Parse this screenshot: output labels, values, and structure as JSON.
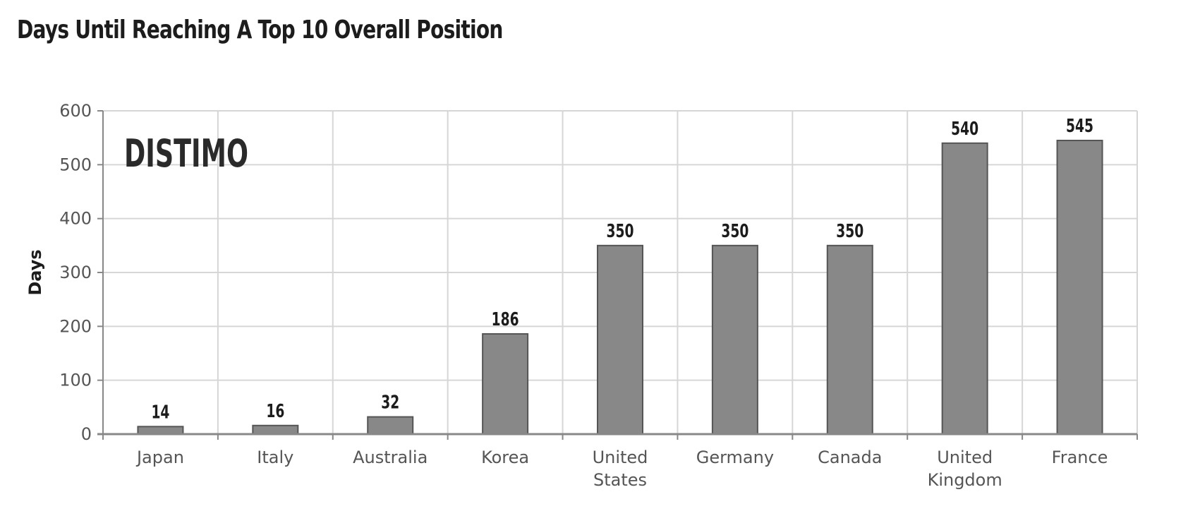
{
  "chart_data": {
    "type": "bar",
    "title": "Days Until Reaching A Top 10 Overall Position",
    "xlabel": "",
    "ylabel": "Days",
    "ylim": [
      0,
      600
    ],
    "yticks": [
      "0",
      "100",
      "200",
      "300",
      "400",
      "500",
      "600"
    ],
    "categories": [
      [
        "Japan"
      ],
      [
        "Italy"
      ],
      [
        "Australia"
      ],
      [
        "Korea"
      ],
      [
        "United",
        "States"
      ],
      [
        "Germany"
      ],
      [
        "Canada"
      ],
      [
        "United",
        "Kingdom"
      ],
      [
        "France"
      ]
    ],
    "values": [
      14,
      16,
      32,
      186,
      350,
      350,
      350,
      540,
      545
    ],
    "data_labels": [
      "14",
      "16",
      "32",
      "186",
      "350",
      "350",
      "350",
      "540",
      "545"
    ],
    "grid": true,
    "bar_color": "#888888",
    "bar_edge_color": "#555555",
    "grid_color": "#d6d6d6",
    "axis_color": "#888888",
    "watermark": "DISTIMO"
  }
}
